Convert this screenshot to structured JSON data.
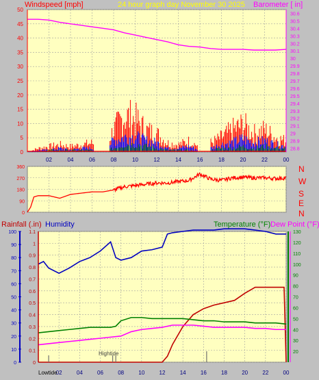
{
  "header": {
    "left_title": "Windspeed [mph]",
    "center_title": "24 hour graph day   November 30 2025",
    "right_title": "Barometer [ in]"
  },
  "colors": {
    "background": "#c0c0c0",
    "plot_bg": "#ffffc0",
    "grid": "#a0a0a0",
    "wind": "#ff0000",
    "gust": "#0000ff",
    "avg": "#008000",
    "barometer": "#ff00ff",
    "direction": "#ff0000",
    "humidity": "#0000c0",
    "rainfall": "#c00000",
    "temperature": "#008000",
    "dewpoint": "#ff00ff",
    "yellow_title": "#ffff00"
  },
  "chart_data": [
    {
      "type": "line",
      "name": "wind_barometer",
      "x_ticks": [
        "02",
        "04",
        "06",
        "08",
        "10",
        "12",
        "14",
        "16",
        "18",
        "20",
        "22",
        "00"
      ],
      "left_axis": {
        "label": "Windspeed [mph]",
        "ticks": [
          0,
          5,
          10,
          15,
          20,
          25,
          30,
          35,
          40,
          45,
          50
        ],
        "ylim": [
          0,
          50
        ]
      },
      "right_axis": {
        "label": "Barometer [ in]",
        "ticks": [
          "28.8",
          "28.9",
          "29",
          "29.1",
          "29.2",
          "29.3",
          "29.4",
          "29.5",
          "29.6",
          "29.7",
          "29.8",
          "29.9",
          "30",
          "30.1",
          "30.2",
          "30.3",
          "30.4",
          "30.5",
          "30.6"
        ],
        "ylim": [
          28.75,
          30.65
        ]
      },
      "series": [
        {
          "name": "Barometer",
          "axis": "right",
          "x": [
            0,
            1,
            2,
            3,
            4,
            5,
            6,
            7,
            8,
            9,
            10,
            11,
            12,
            13,
            14,
            15,
            16,
            17,
            18,
            19,
            20,
            21,
            22,
            23,
            24
          ],
          "y": [
            30.52,
            30.52,
            30.51,
            30.48,
            30.46,
            30.44,
            30.42,
            30.4,
            30.38,
            30.34,
            30.31,
            30.28,
            30.25,
            30.22,
            30.18,
            30.16,
            30.15,
            30.13,
            30.12,
            30.12,
            30.12,
            30.11,
            30.11,
            30.11,
            30.12
          ]
        },
        {
          "name": "Windspeed (peaks)",
          "axis": "left",
          "x": [
            0,
            1,
            2,
            3,
            4,
            5,
            6,
            7,
            8,
            9,
            10,
            11,
            12,
            13,
            14,
            15,
            16,
            17,
            18,
            19,
            20,
            21,
            22,
            23,
            24
          ],
          "y": [
            0,
            2,
            3,
            4,
            3,
            4,
            5,
            2,
            12,
            20,
            18,
            12,
            10,
            5,
            4,
            6,
            3,
            5,
            8,
            12,
            15,
            10,
            12,
            8,
            6
          ]
        },
        {
          "name": "Gust",
          "axis": "left",
          "x": [
            0,
            1,
            2,
            3,
            4,
            5,
            6,
            7,
            8,
            9,
            10,
            11,
            12,
            13,
            14,
            15,
            16,
            17,
            18,
            19,
            20,
            21,
            22,
            23,
            24
          ],
          "y": [
            0,
            1,
            1,
            2,
            1,
            2,
            2,
            1,
            6,
            8,
            8,
            6,
            5,
            2,
            2,
            3,
            1,
            2,
            4,
            5,
            7,
            5,
            6,
            4,
            3
          ]
        },
        {
          "name": "Average",
          "axis": "left",
          "x": [
            0,
            1,
            2,
            3,
            4,
            5,
            6,
            7,
            8,
            9,
            10,
            11,
            12,
            13,
            14,
            15,
            16,
            17,
            18,
            19,
            20,
            21,
            22,
            23,
            24
          ],
          "y": [
            0,
            0,
            1,
            1,
            1,
            1,
            1,
            0,
            2,
            4,
            4,
            3,
            2,
            1,
            1,
            1,
            0,
            1,
            2,
            2,
            3,
            2,
            3,
            2,
            2
          ]
        }
      ]
    },
    {
      "type": "line",
      "name": "wind_direction",
      "left_axis": {
        "ticks": [
          0,
          90,
          180,
          270,
          360
        ],
        "ylim": [
          0,
          360
        ]
      },
      "right_axis_labels": [
        "N",
        "W",
        "S",
        "E",
        "N"
      ],
      "series": [
        {
          "name": "Wind direction",
          "x": [
            0,
            0.3,
            0.6,
            1,
            2,
            3,
            4,
            5,
            6,
            7,
            8,
            9,
            10,
            11,
            12,
            13,
            14,
            15,
            16,
            17,
            18,
            19,
            20,
            21,
            22,
            23,
            24
          ],
          "y": [
            0,
            40,
            120,
            130,
            130,
            110,
            140,
            150,
            160,
            160,
            175,
            200,
            210,
            220,
            230,
            230,
            240,
            250,
            300,
            260,
            250,
            270,
            275,
            270,
            270,
            265,
            270
          ]
        }
      ]
    },
    {
      "type": "line",
      "name": "rain_humidity_temp",
      "left_axis_humidity": {
        "label": "Humidity",
        "ticks": [
          0,
          10,
          20,
          30,
          40,
          50,
          60,
          70,
          80,
          90,
          100
        ],
        "ylim": [
          0,
          100
        ]
      },
      "left_axis_rain": {
        "label": "Rainfall (.in)",
        "ticks": [
          "0",
          "0.1",
          "0.2",
          "0.3",
          "0.4",
          "0.5",
          "0.6",
          "0.7",
          "0.8",
          "0.9",
          "1",
          "1.1"
        ],
        "ylim": [
          0,
          1.1
        ]
      },
      "right_axis_temp": {
        "label": "Temperature (°F)",
        "ticks": [
          20,
          30,
          40,
          50,
          60,
          70,
          80,
          90,
          100,
          110,
          120,
          130
        ],
        "ylim": [
          10,
          130
        ]
      },
      "legend": [
        "Rainfall (.in)",
        "Humidity",
        "Temperature (°F)",
        "Dew Point (°F)"
      ],
      "annotations": [
        "Lowtide",
        "Hightide"
      ],
      "series": [
        {
          "name": "Humidity",
          "axis": "humidity",
          "x": [
            0,
            0.5,
            1,
            2,
            3,
            4,
            5,
            6,
            7,
            7.5,
            8,
            9,
            10,
            11,
            12,
            12.5,
            13,
            14,
            15,
            16,
            17,
            18,
            19,
            20,
            21,
            22,
            23,
            24
          ],
          "y": [
            75,
            77,
            72,
            68,
            72,
            77,
            80,
            85,
            92,
            80,
            78,
            80,
            85,
            86,
            88,
            98,
            99,
            100,
            101,
            101,
            101,
            102,
            102,
            102,
            101,
            100,
            98,
            98
          ]
        },
        {
          "name": "Rainfall (.in)",
          "axis": "rain",
          "x": [
            0,
            8,
            12,
            12.5,
            13,
            14,
            15,
            16,
            17,
            18,
            19,
            20,
            21,
            22,
            23,
            23.8,
            24
          ],
          "y": [
            0,
            0,
            0,
            0.05,
            0.15,
            0.3,
            0.4,
            0.45,
            0.48,
            0.5,
            0.52,
            0.58,
            0.63,
            0.63,
            0.63,
            0.63,
            0.0
          ]
        },
        {
          "name": "Temperature (°F)",
          "axis": "temp",
          "x": [
            0,
            1,
            2,
            3,
            4,
            5,
            6,
            7,
            7.5,
            8,
            9,
            10,
            11,
            12,
            13,
            14,
            15,
            16,
            17,
            18,
            19,
            20,
            21,
            22,
            23,
            24
          ],
          "y": [
            37,
            38,
            39,
            40,
            41,
            42,
            42,
            42,
            43,
            48,
            51,
            51,
            50,
            50,
            50,
            50,
            49,
            48,
            48,
            47,
            47,
            47,
            46,
            46,
            46,
            45
          ]
        },
        {
          "name": "Dew Point (°F)",
          "axis": "temp",
          "x": [
            0,
            1,
            2,
            3,
            4,
            5,
            6,
            7,
            8,
            9,
            10,
            11,
            12,
            13,
            14,
            15,
            16,
            17,
            18,
            19,
            20,
            21,
            22,
            23,
            24
          ],
          "y": [
            26,
            27,
            28,
            29,
            30,
            31,
            32,
            33,
            34,
            38,
            40,
            41,
            42,
            44,
            44,
            44,
            43,
            42,
            42,
            42,
            42,
            41,
            41,
            40,
            40
          ]
        }
      ]
    }
  ],
  "bottom_x_ticks": [
    "02",
    "04",
    "06",
    "08",
    "10",
    "12",
    "14",
    "16",
    "18",
    "20",
    "22",
    "00"
  ]
}
